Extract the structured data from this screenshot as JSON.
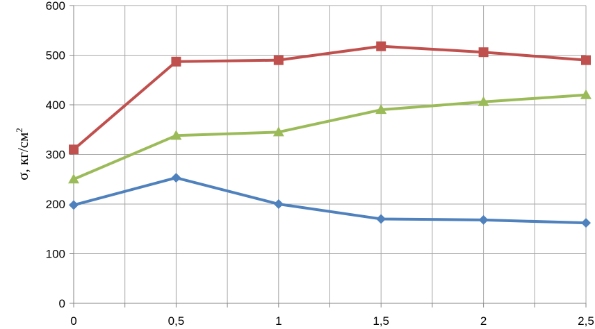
{
  "chart_data": {
    "type": "line",
    "title": "",
    "xlabel": "",
    "ylabel": "σ, кг/см",
    "ylabel_sup": "2",
    "x": [
      0,
      0.5,
      1,
      1.5,
      2,
      2.5
    ],
    "x_tick_labels": [
      "0",
      "0,5",
      "1",
      "1,5",
      "2",
      "2,5"
    ],
    "xlim": [
      0,
      2.5
    ],
    "ylim": [
      0,
      600
    ],
    "y_ticks": [
      0,
      100,
      200,
      300,
      400,
      500,
      600
    ],
    "y_tick_labels": [
      "0",
      "100",
      "200",
      "300",
      "400",
      "500",
      "600"
    ],
    "grid": true,
    "legend": "none",
    "series": [
      {
        "color": "#c0504d",
        "marker": "square",
        "values": [
          310,
          487,
          490,
          518,
          506,
          490
        ]
      },
      {
        "color": "#9bbb59",
        "marker": "triangle",
        "values": [
          250,
          338,
          345,
          390,
          406,
          420
        ]
      },
      {
        "color": "#4f81bd",
        "marker": "diamond",
        "values": [
          198,
          253,
          200,
          170,
          168,
          162
        ]
      }
    ]
  }
}
